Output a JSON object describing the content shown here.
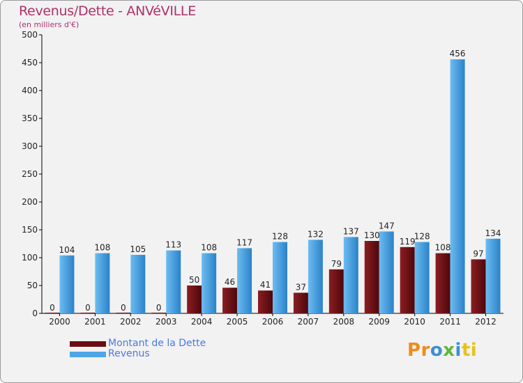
{
  "header": {
    "title": "Revenus/Dette - ANVéVILLE",
    "subtitle": "(en milliers d'€)"
  },
  "legend": {
    "items": [
      {
        "label": "Montant de la Dette",
        "color": "#6b0d12"
      },
      {
        "label": "Revenus",
        "color": "#4ea6e6"
      }
    ]
  },
  "logo": {
    "text": "Proxiti"
  },
  "colors": {
    "title": "#b0306a",
    "debt_dark": "#5a080c",
    "debt_light": "#8a1e22",
    "revenue_dark": "#2f86cc",
    "revenue_light": "#62b4ee"
  },
  "chart_data": {
    "type": "bar",
    "categories": [
      "2000",
      "2001",
      "2002",
      "2003",
      "2004",
      "2005",
      "2006",
      "2007",
      "2008",
      "2009",
      "2010",
      "2011",
      "2012"
    ],
    "series": [
      {
        "name": "Montant de la Dette",
        "values": [
          0,
          0,
          0,
          0,
          50,
          46,
          41,
          37,
          79,
          130,
          119,
          108,
          97
        ]
      },
      {
        "name": "Revenus",
        "values": [
          104,
          108,
          105,
          113,
          108,
          117,
          128,
          132,
          137,
          147,
          128,
          456,
          134
        ]
      }
    ],
    "title": "Revenus/Dette - ANVéVILLE",
    "ylabel": "(en milliers d'€)",
    "ylim": [
      0,
      500
    ],
    "yticks": [
      0,
      50,
      100,
      150,
      200,
      250,
      300,
      350,
      400,
      450,
      500
    ],
    "grid": false,
    "legend_position": "bottom-left"
  }
}
